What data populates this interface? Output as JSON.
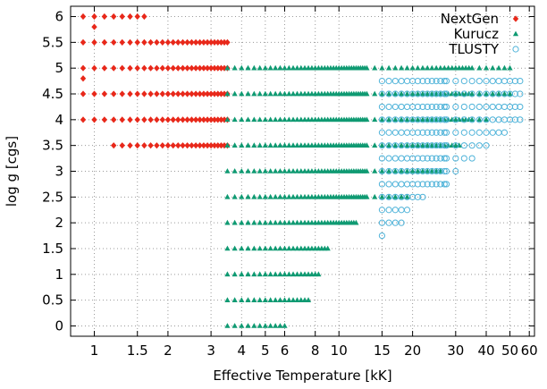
{
  "chart_data": {
    "type": "scatter",
    "title": "",
    "xlabel": "Effective Temperature [kK]",
    "ylabel": "log g [cgs]",
    "x_scale": "log",
    "xlim": [
      0.8,
      63
    ],
    "ylim": [
      -0.2,
      6.2
    ],
    "grid": true,
    "legend_position": "top-right",
    "x_ticks": [
      1,
      1.5,
      2,
      3,
      4,
      5,
      6,
      8,
      10,
      15,
      20,
      30,
      40,
      50,
      60
    ],
    "x_tick_labels": [
      "1",
      "1.5",
      "2",
      "3",
      "4",
      "5",
      "6",
      "8",
      "10",
      "15",
      "20",
      "30",
      "40",
      "50",
      "60"
    ],
    "y_ticks": [
      0,
      0.5,
      1,
      1.5,
      2,
      2.5,
      3,
      3.5,
      4,
      4.5,
      5,
      5.5,
      6
    ],
    "y_tick_labels": [
      "0",
      "0.5",
      "1",
      "1.5",
      "2",
      "2.5",
      "3",
      "3.5",
      "4",
      "4.5",
      "5",
      "5.5",
      "6"
    ],
    "series": [
      {
        "name": "NextGen",
        "marker": "diamond",
        "color": "#e8281a",
        "x_grid": [
          0.9,
          1.0,
          1.1,
          1.2,
          1.3,
          1.4,
          1.5,
          1.6,
          1.7,
          1.8,
          1.9,
          2.0,
          2.1,
          2.2,
          2.3,
          2.4,
          2.5,
          2.6,
          2.7,
          2.8,
          2.9,
          3.0,
          3.1,
          3.2,
          3.3,
          3.4,
          3.5
        ],
        "rows": [
          {
            "logg": 6.0,
            "tmin": 0.9,
            "tmax": 1.6
          },
          {
            "logg": 5.8,
            "tmin": 1.0,
            "tmax": 1.0
          },
          {
            "logg": 5.5,
            "tmin": 0.9,
            "tmax": 3.5
          },
          {
            "logg": 5.0,
            "tmin": 0.9,
            "tmax": 3.5
          },
          {
            "logg": 4.8,
            "tmin": 0.9,
            "tmax": 0.9
          },
          {
            "logg": 4.5,
            "tmin": 0.9,
            "tmax": 3.5
          },
          {
            "logg": 4.0,
            "tmin": 0.9,
            "tmax": 3.5
          },
          {
            "logg": 3.5,
            "tmin": 1.2,
            "tmax": 3.5
          }
        ]
      },
      {
        "name": "Kurucz",
        "marker": "triangle",
        "color": "#0f9a72",
        "x_grid": [
          3.5,
          3.75,
          4.0,
          4.25,
          4.5,
          4.75,
          5.0,
          5.25,
          5.5,
          5.75,
          6.0,
          6.25,
          6.5,
          6.75,
          7.0,
          7.25,
          7.5,
          7.75,
          8.0,
          8.25,
          8.5,
          8.75,
          9.0,
          9.25,
          9.5,
          9.75,
          10.0,
          10.25,
          10.5,
          10.75,
          11.0,
          11.25,
          11.5,
          11.75,
          12.0,
          12.25,
          12.5,
          12.75,
          13.0,
          14.0,
          15.0,
          16.0,
          17.0,
          18.0,
          19.0,
          20.0,
          21.0,
          22.0,
          23.0,
          24.0,
          25.0,
          26.0,
          27.0,
          28.0,
          29.0,
          30.0,
          31.0,
          32.0,
          33.0,
          34.0,
          35.0,
          37.5,
          40.0,
          42.5,
          45.0,
          47.5,
          50.0
        ],
        "rows": [
          {
            "logg": 5.0,
            "tmin": 3.5,
            "tmax": 50.0
          },
          {
            "logg": 4.5,
            "tmin": 3.5,
            "tmax": 50.0
          },
          {
            "logg": 4.0,
            "tmin": 3.5,
            "tmax": 40.0
          },
          {
            "logg": 3.5,
            "tmin": 3.5,
            "tmax": 31.0
          },
          {
            "logg": 3.0,
            "tmin": 3.5,
            "tmax": 26.0
          },
          {
            "logg": 2.5,
            "tmin": 3.5,
            "tmax": 19.0
          },
          {
            "logg": 2.0,
            "tmin": 3.5,
            "tmax": 11.75
          },
          {
            "logg": 1.5,
            "tmin": 3.5,
            "tmax": 9.0
          },
          {
            "logg": 1.0,
            "tmin": 3.5,
            "tmax": 8.25
          },
          {
            "logg": 0.5,
            "tmin": 3.5,
            "tmax": 7.5
          },
          {
            "logg": 0.0,
            "tmin": 3.5,
            "tmax": 6.0
          }
        ]
      },
      {
        "name": "TLUSTY",
        "marker": "circle",
        "color": "#4fb3d9",
        "x_grid": [
          15.0,
          16.0,
          17.0,
          18.0,
          19.0,
          20.0,
          21.0,
          22.0,
          23.0,
          24.0,
          25.0,
          26.0,
          27.0,
          27.5,
          30.0,
          32.5,
          35.0,
          37.5,
          40.0,
          42.5,
          45.0,
          47.5,
          50.0,
          52.5,
          55.0
        ],
        "rows": [
          {
            "logg": 4.75,
            "tmin": 15.0,
            "tmax": 55.0
          },
          {
            "logg": 4.5,
            "tmin": 15.0,
            "tmax": 55.0
          },
          {
            "logg": 4.25,
            "tmin": 15.0,
            "tmax": 55.0
          },
          {
            "logg": 4.0,
            "tmin": 15.0,
            "tmax": 55.0
          },
          {
            "logg": 3.75,
            "tmin": 15.0,
            "tmax": 47.5
          },
          {
            "logg": 3.5,
            "tmin": 15.0,
            "tmax": 40.0
          },
          {
            "logg": 3.25,
            "tmin": 15.0,
            "tmax": 35.0
          },
          {
            "logg": 3.0,
            "tmin": 15.0,
            "tmax": 30.0
          },
          {
            "logg": 2.75,
            "tmin": 15.0,
            "tmax": 27.5
          },
          {
            "logg": 2.5,
            "tmin": 15.0,
            "tmax": 22.0
          },
          {
            "logg": 2.25,
            "tmin": 15.0,
            "tmax": 19.0
          },
          {
            "logg": 2.0,
            "tmin": 15.0,
            "tmax": 18.0
          },
          {
            "logg": 1.75,
            "tmin": 15.0,
            "tmax": 15.0
          }
        ]
      }
    ]
  }
}
